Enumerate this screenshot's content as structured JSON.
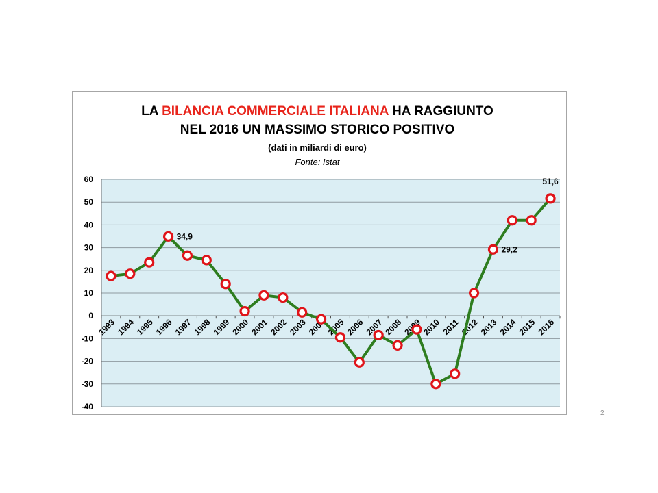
{
  "slide": {
    "page_number": "2"
  },
  "chart_data": {
    "type": "line",
    "title_parts": [
      {
        "text": "LA ",
        "highlight": false
      },
      {
        "text": "BILANCIA COMMERCIALE ITALIANA",
        "highlight": true
      },
      {
        "text": " HA RAGGIUNTO",
        "highlight": false
      }
    ],
    "title_line2": "NEL 2016 UN MASSIMO STORICO POSITIVO",
    "subtitle": "(dati in miliardi di euro)",
    "source": "Fonte: Istat",
    "colors": {
      "line": "#2e7d1f",
      "marker_edge": "#e0141a",
      "marker_fill": "#ffffff",
      "plot_bg": "#dbeef4",
      "title_highlight": "#e8241b"
    },
    "ylim": [
      -40,
      60
    ],
    "yticks": [
      60,
      50,
      40,
      30,
      20,
      10,
      0,
      -10,
      -20,
      -30,
      -40
    ],
    "grid": true,
    "categories": [
      "1993",
      "1994",
      "1995",
      "1996",
      "1997",
      "1998",
      "1999",
      "2000",
      "2001",
      "2002",
      "2003",
      "2004",
      "2005",
      "2006",
      "2007",
      "2008",
      "2009",
      "2010",
      "2011",
      "2012",
      "2013",
      "2014",
      "2015",
      "2016"
    ],
    "series": [
      {
        "values": [
          17.5,
          18.5,
          23.5,
          34.9,
          26.5,
          24.5,
          14.0,
          2.0,
          9.0,
          8.0,
          1.5,
          -1.5,
          -9.5,
          -20.5,
          -8.5,
          -13.0,
          -6.0,
          -30.0,
          -25.5,
          10.0,
          29.2,
          42.0,
          42.0,
          51.6
        ]
      }
    ],
    "annotations": [
      {
        "index": 3,
        "text": "34,9"
      },
      {
        "index": 20,
        "text": "29,2"
      },
      {
        "index": 23,
        "text": "51,6"
      }
    ]
  }
}
